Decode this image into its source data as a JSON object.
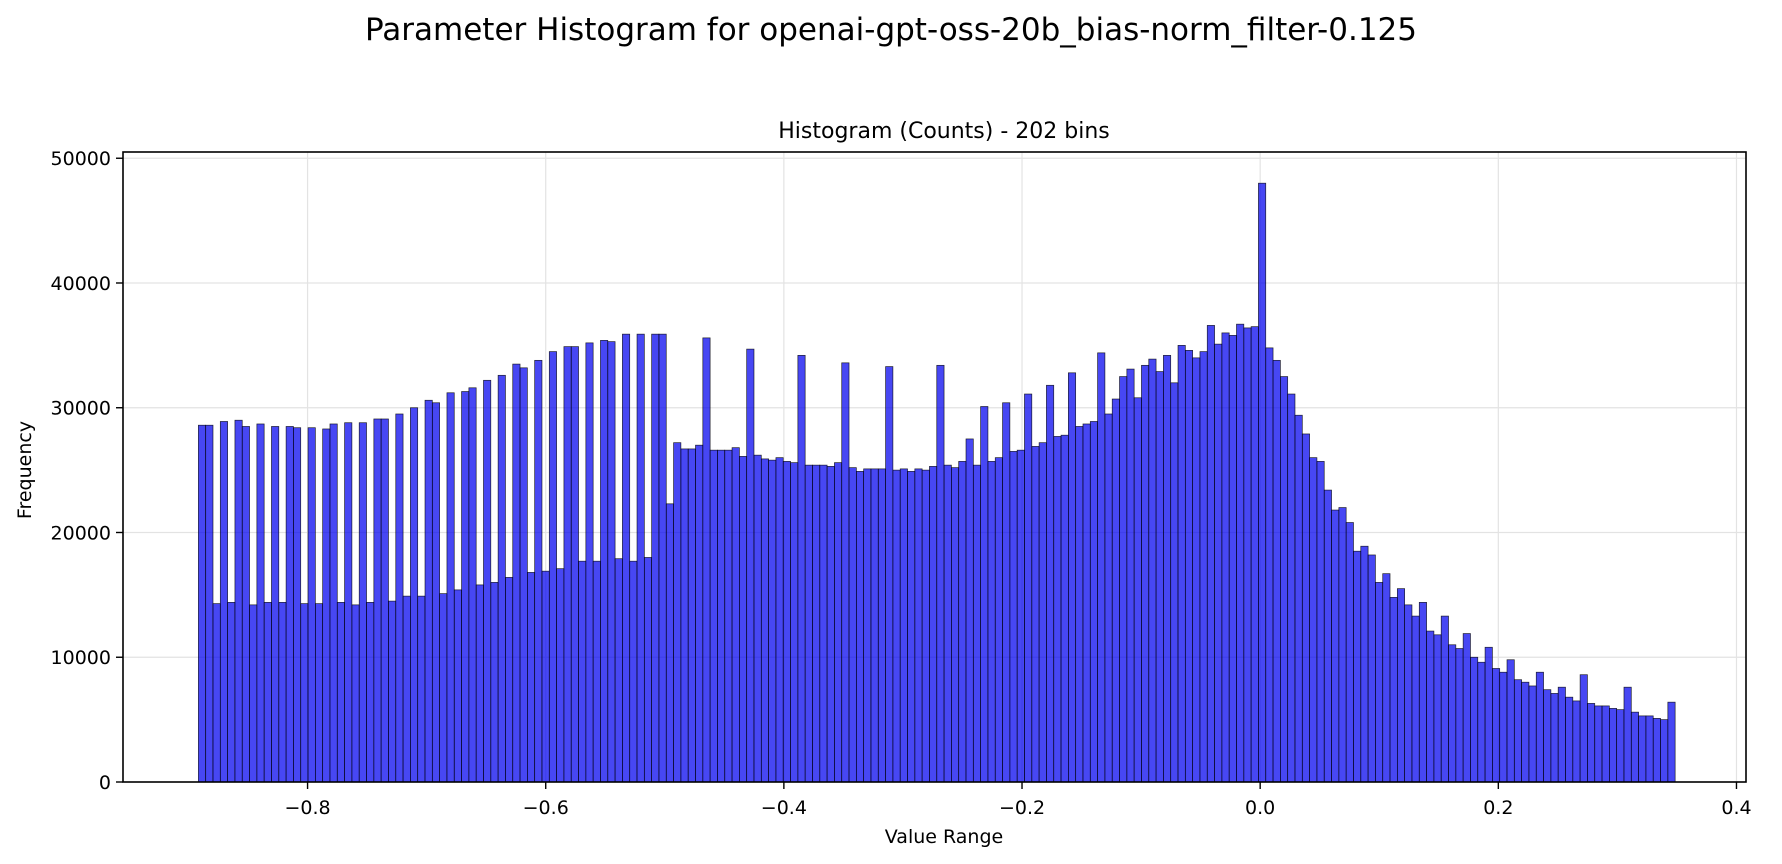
{
  "suptitle": "Parameter Histogram for openai-gpt-oss-20b_bias-norm_filter-0.125",
  "chart_data": {
    "type": "bar",
    "title": "Histogram (Counts) - 202 bins",
    "xlabel": "Value Range",
    "ylabel": "Frequency",
    "xlim": [
      -0.955,
      0.408
    ],
    "ylim": [
      0,
      50500
    ],
    "bin_start": -0.8917,
    "bin_end": 0.3485,
    "xticks": [
      -0.8,
      -0.6,
      -0.4,
      -0.2,
      0.0,
      0.2,
      0.4
    ],
    "xtick_labels": [
      "−0.8",
      "−0.6",
      "−0.4",
      "−0.2",
      "0.0",
      "0.2",
      "0.4"
    ],
    "yticks": [
      0,
      10000,
      20000,
      30000,
      40000,
      50000
    ],
    "ytick_labels": [
      "0",
      "10000",
      "20000",
      "30000",
      "40000",
      "50000"
    ],
    "grid": true,
    "bar_color": "#0000ee",
    "bar_edge_color": "#000000",
    "values": [
      28600,
      28600,
      14300,
      28900,
      14400,
      29000,
      28500,
      14200,
      28700,
      14400,
      28500,
      14400,
      28500,
      28400,
      14300,
      28400,
      14300,
      28300,
      28700,
      14400,
      28800,
      14200,
      28800,
      14400,
      29100,
      29100,
      14500,
      29500,
      14900,
      30000,
      14900,
      30600,
      30400,
      15100,
      31200,
      15400,
      31300,
      31600,
      15800,
      32200,
      16000,
      32600,
      16400,
      33500,
      33200,
      16800,
      33800,
      16900,
      34500,
      17100,
      34900,
      34900,
      17700,
      35200,
      17700,
      35400,
      35300,
      17900,
      35900,
      17700,
      35900,
      18000,
      35900,
      35900,
      22300,
      27200,
      26700,
      26700,
      27000,
      35600,
      26600,
      26600,
      26600,
      26800,
      26100,
      34700,
      26200,
      25900,
      25800,
      26000,
      25700,
      25600,
      34200,
      25400,
      25400,
      25400,
      25300,
      25600,
      33600,
      25200,
      24900,
      25100,
      25100,
      25100,
      33300,
      25000,
      25100,
      24900,
      25100,
      25000,
      25300,
      33400,
      25400,
      25200,
      25700,
      27500,
      25400,
      30100,
      25700,
      26000,
      30400,
      26500,
      26600,
      31100,
      26900,
      27200,
      31800,
      27700,
      27800,
      32800,
      28500,
      28700,
      28900,
      34400,
      29500,
      30700,
      32500,
      33100,
      30800,
      33400,
      33900,
      32900,
      34200,
      32000,
      35000,
      34600,
      34000,
      34500,
      36600,
      35100,
      36000,
      35800,
      36700,
      36400,
      36500,
      48000,
      34800,
      33800,
      32500,
      31100,
      29400,
      27900,
      26000,
      25700,
      23400,
      21800,
      22000,
      20800,
      18500,
      18900,
      18200,
      16000,
      16700,
      14800,
      15500,
      14200,
      13300,
      14400,
      12100,
      11800,
      13300,
      11000,
      10700,
      11900,
      10000,
      9600,
      10800,
      9100,
      8800,
      9800,
      8200,
      8000,
      7700,
      8800,
      7400,
      7100,
      7600,
      6800,
      6500,
      8600,
      6300,
      6100,
      6100,
      5900,
      5800,
      7600,
      5600,
      5300,
      5300,
      5100,
      5000,
      6400
    ]
  }
}
